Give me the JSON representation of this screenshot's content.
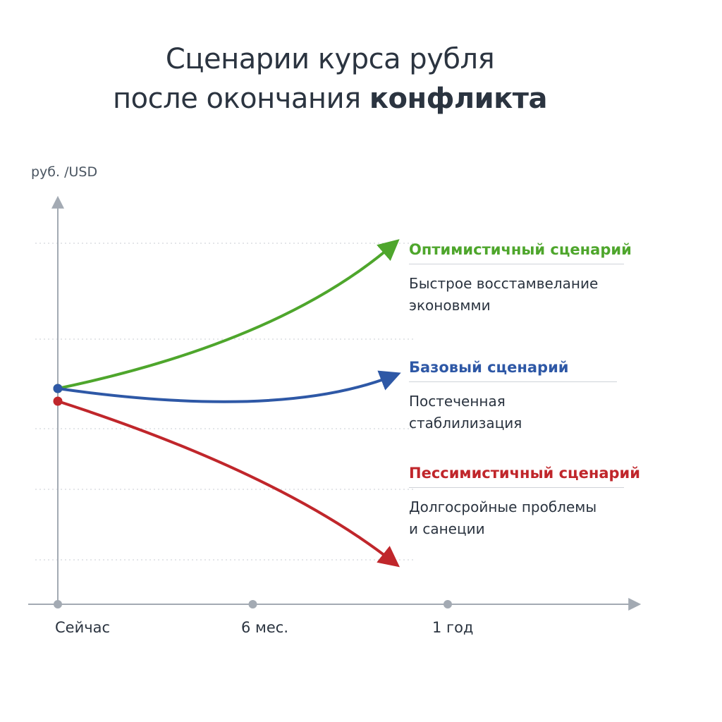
{
  "title": {
    "line1": "Сценарии курса рубля",
    "line2_prefix": "после окончания ",
    "line2_bold": "конфликта"
  },
  "colors": {
    "optimistic": "#4ea62c",
    "base": "#2e58a6",
    "pessimistic": "#c0262b",
    "axis": "#a3aab3",
    "grid": "#d3d7dc",
    "text": "#2b3440"
  },
  "legend": [
    {
      "key": "optimistic",
      "name": "Оптимистичный сценарий",
      "desc_line1": "Быстрое восстамвелание",
      "desc_line2": "эконовмми"
    },
    {
      "key": "base",
      "name": "Базовый сценарий",
      "desc_line1": "Постеченная стаблилизация",
      "desc_line2": ""
    },
    {
      "key": "pessimistic",
      "name": "Пессимистичный сценарий",
      "desc_line1": "Долгосройные проблемы",
      "desc_line2": "и санеции"
    }
  ],
  "chart_data": {
    "type": "line",
    "title": "Сценарии курса рубля после окончания конфликта",
    "xlabel": "",
    "ylabel": "руб. /USD",
    "categories": [
      "Сейчас",
      "6 мес.",
      "1 год"
    ],
    "x": [
      0,
      0.5,
      1
    ],
    "xlim": [
      0,
      1.4
    ],
    "ylim": [
      0,
      10
    ],
    "grid": true,
    "y_tick_labels": false,
    "legend": "right",
    "series": [
      {
        "name": "Оптимистичный сценарий",
        "key": "optimistic",
        "x": [
          0,
          0.5,
          0.86
        ],
        "y": [
          5.1,
          6.5,
          8.5
        ]
      },
      {
        "name": "Базовый сценарий",
        "key": "base",
        "x": [
          0,
          0.5,
          0.86
        ],
        "y": [
          5.1,
          4.8,
          5.4
        ]
      },
      {
        "name": "Пессимистичный сценарий",
        "key": "pessimistic",
        "x": [
          0,
          0.5,
          0.86
        ],
        "y": [
          4.8,
          3.0,
          1.0
        ]
      }
    ]
  }
}
